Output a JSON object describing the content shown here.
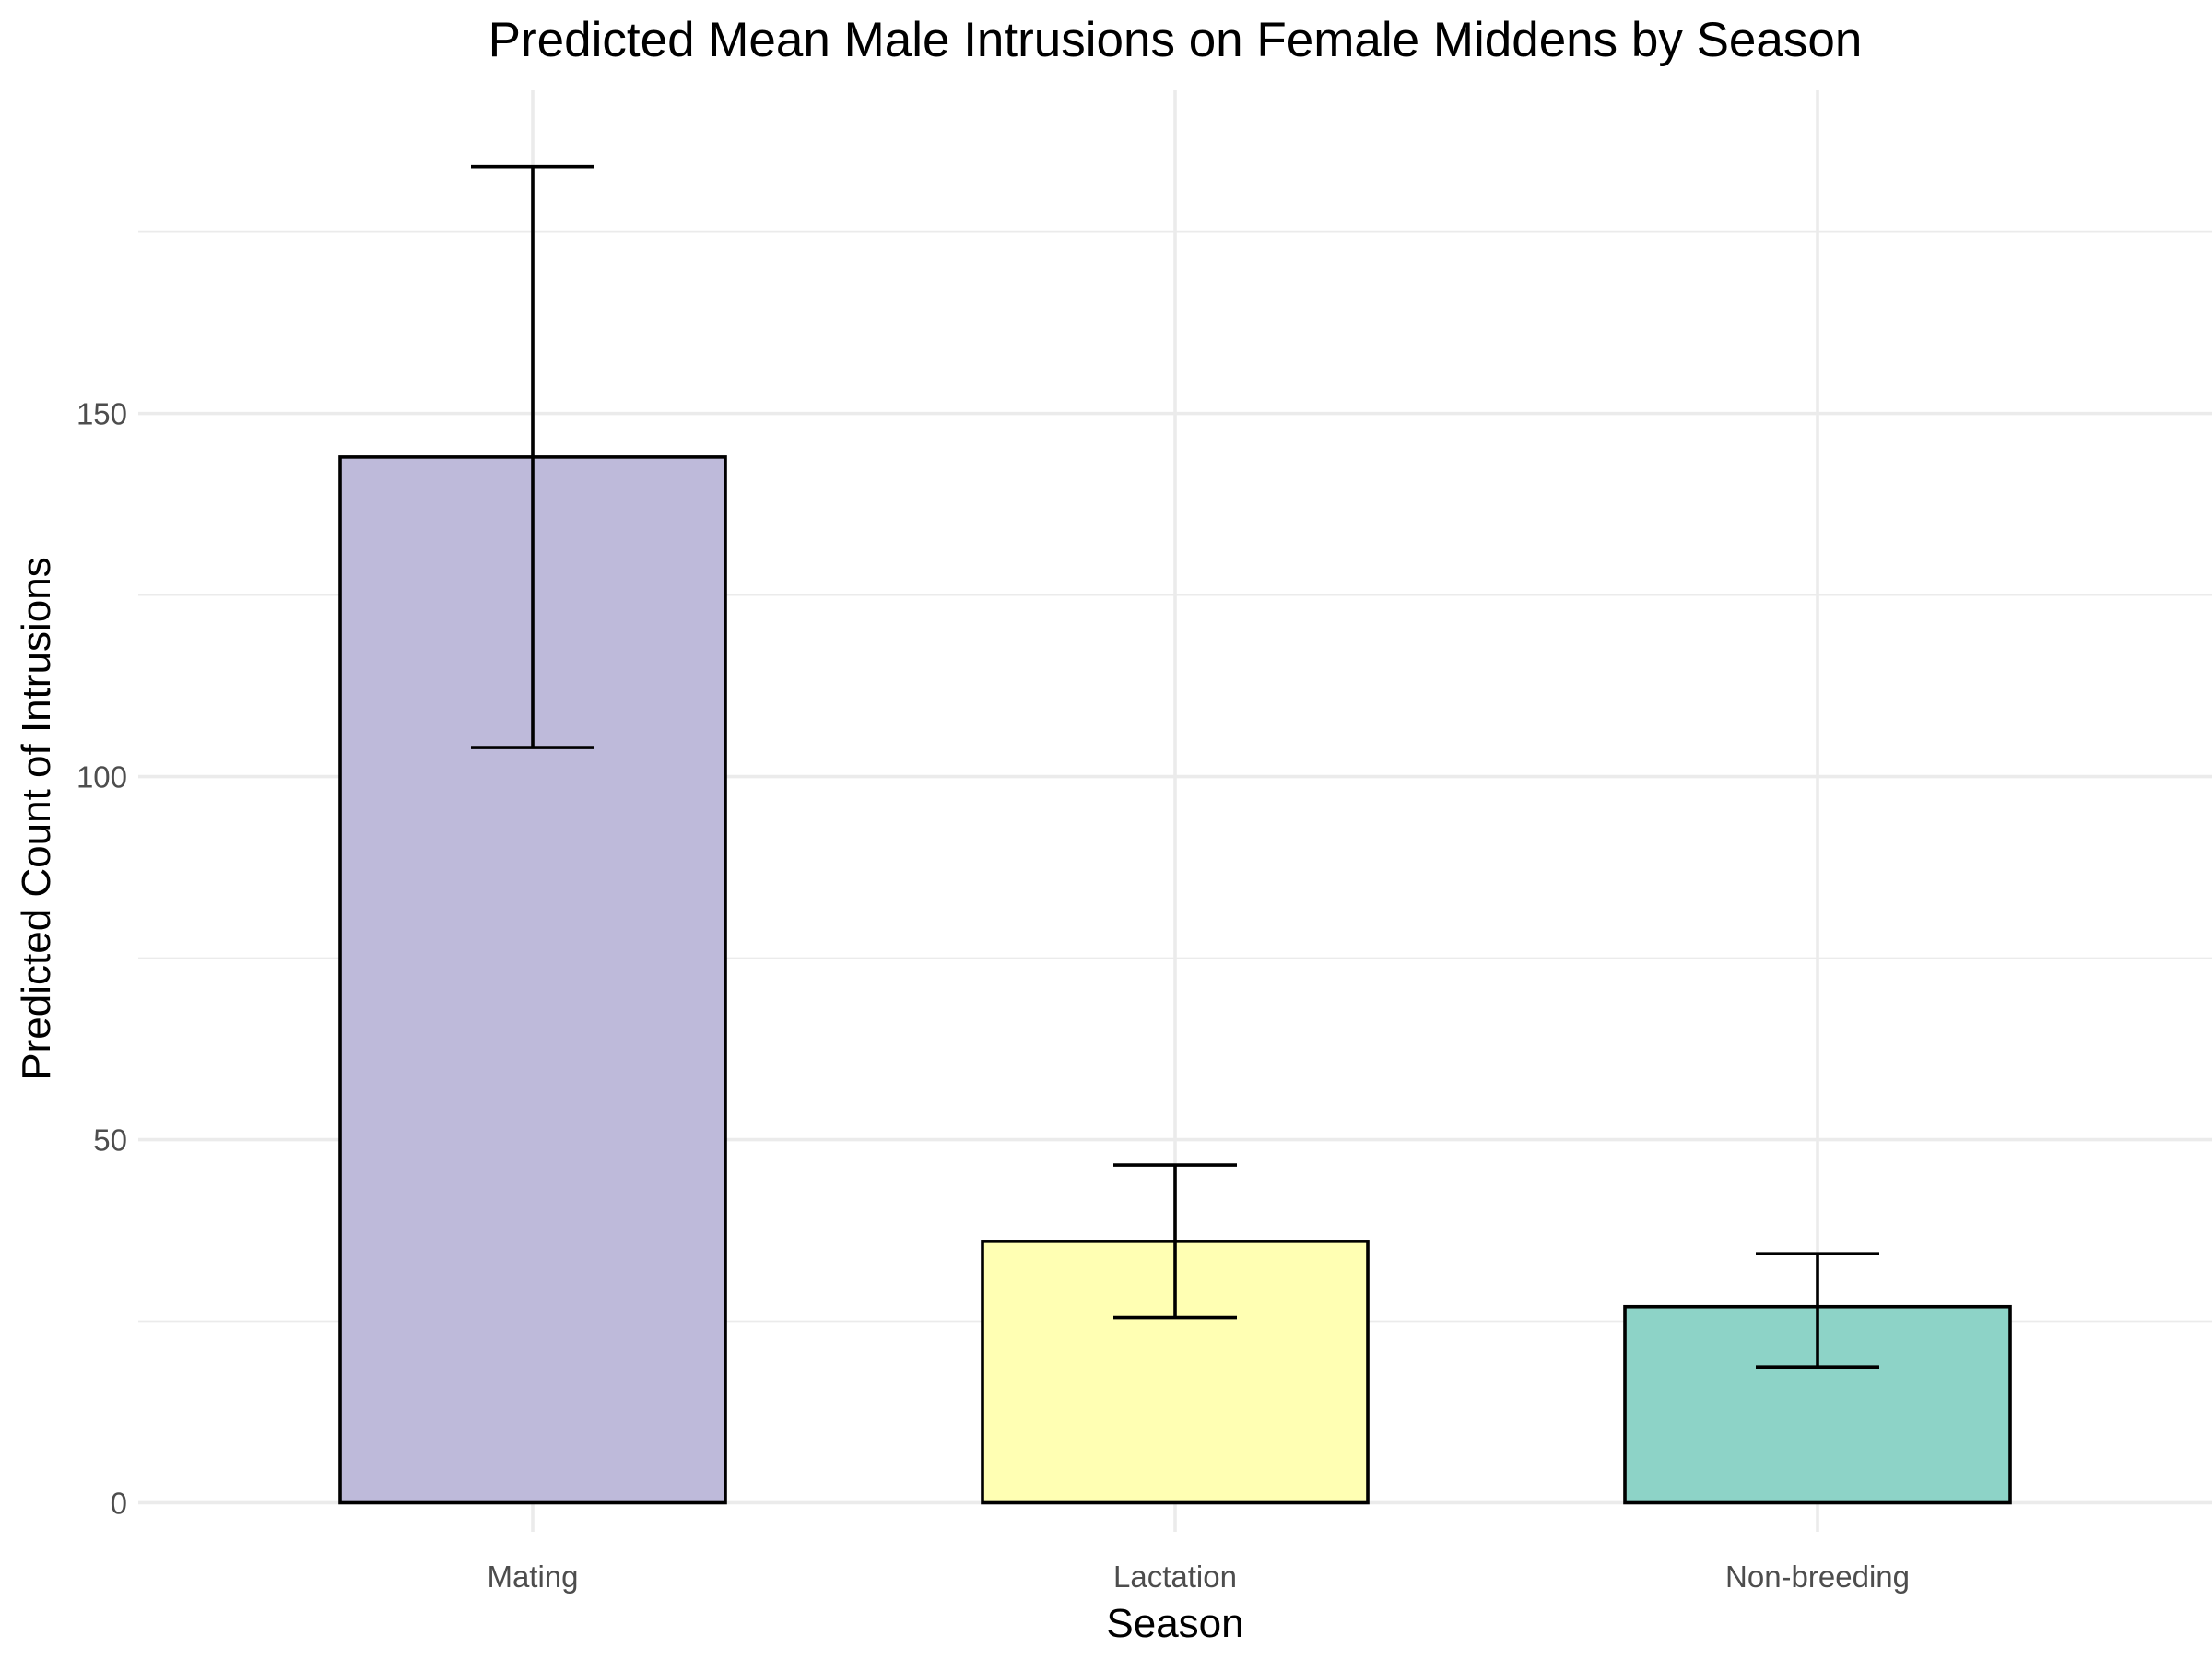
{
  "chart_data": {
    "type": "bar",
    "title": "Predicted Mean Male Intrusions on Female Middens by Season",
    "xlabel": "Season",
    "ylabel": "Predicted Count of Intrusions",
    "categories": [
      "Mating",
      "Lactation",
      "Non-breeding"
    ],
    "values": [
      144,
      36,
      27
    ],
    "error_bars": [
      {
        "lower": 104,
        "upper": 184
      },
      {
        "lower": 25.5,
        "upper": 46.5
      },
      {
        "lower": 18.7,
        "upper": 34.3
      }
    ],
    "colors": [
      "#bebada",
      "#ffffb3",
      "#8dd3c7"
    ],
    "ylim": [
      -4,
      194.5
    ],
    "yticks": [
      0,
      50,
      100,
      150
    ],
    "yticks_minor": [
      25,
      75,
      125,
      175
    ],
    "ytick_labels": [
      "0",
      "50",
      "100",
      "150"
    ],
    "grid": true,
    "legend": "none"
  }
}
